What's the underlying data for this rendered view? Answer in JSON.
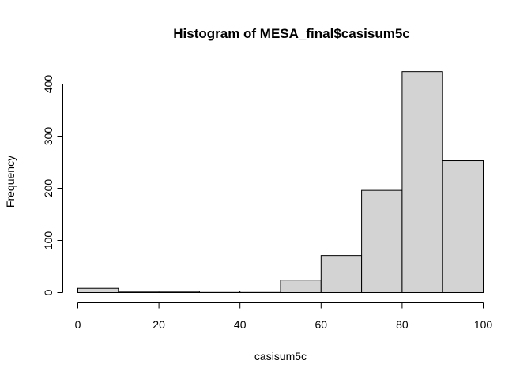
{
  "chart_data": {
    "type": "bar",
    "title": "Histogram of MESA_final$casisum5c",
    "xlabel": "casisum5c",
    "ylabel": "Frequency",
    "bins": [
      [
        0,
        10
      ],
      [
        10,
        20
      ],
      [
        20,
        30
      ],
      [
        30,
        40
      ],
      [
        40,
        50
      ],
      [
        50,
        60
      ],
      [
        60,
        70
      ],
      [
        70,
        80
      ],
      [
        80,
        90
      ],
      [
        90,
        100
      ]
    ],
    "values": [
      8,
      1,
      1,
      3,
      3,
      24,
      71,
      196,
      424,
      253
    ],
    "xlim": [
      0,
      100
    ],
    "ylim": [
      0,
      424
    ],
    "xticks": [
      0,
      20,
      40,
      60,
      80,
      100
    ],
    "yticks": [
      0,
      100,
      200,
      300,
      400
    ],
    "bar_color": "#d3d3d3",
    "grid": false,
    "legend": "none"
  }
}
